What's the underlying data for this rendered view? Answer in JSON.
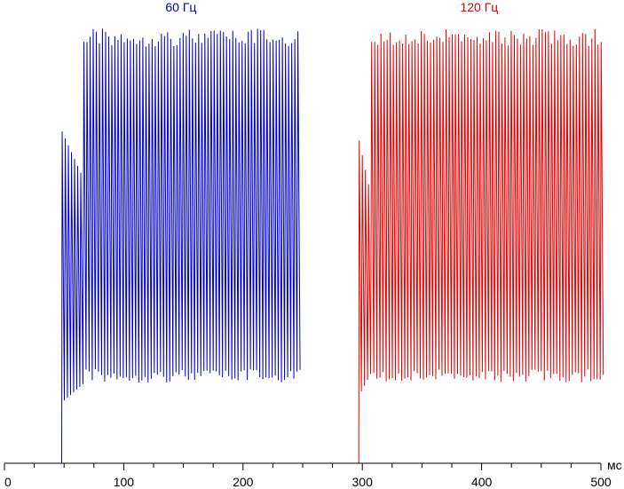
{
  "chart_data": {
    "type": "line",
    "title": "",
    "xlabel": "",
    "ylabel": "",
    "x_unit": "мс",
    "xlim": [
      0,
      500
    ],
    "ylim": [
      0,
      100
    ],
    "xticks": [
      0,
      100,
      200,
      300,
      400,
      500
    ],
    "xtick_labels": [
      "0",
      "100",
      "200",
      "300",
      "400",
      "500"
    ],
    "grid": false,
    "legend": "none",
    "series": [
      {
        "name": "60 Гц",
        "color": "#0000cc",
        "x_start": 0,
        "x_end": 250,
        "baseline": 0,
        "rise_x": 48,
        "step1_x_end": 65,
        "step1_peak": 74,
        "step1_trough": 14,
        "step2_x_start": 65,
        "step2_peak": 97,
        "step2_trough": 21,
        "end_x": 248,
        "oscillation_period": 2.6
      },
      {
        "name": "120 Гц",
        "color": "#e60000",
        "x_start": 250,
        "x_end": 500,
        "baseline": 0,
        "rise_x": 297,
        "step1_x_end": 305,
        "step1_peak": 72,
        "step1_trough": 16,
        "step2_x_start": 305,
        "step2_peak": 97,
        "step2_trough": 21,
        "end_x": 500,
        "oscillation_period": 2.6
      }
    ],
    "annotations": [
      {
        "text": "60 Гц",
        "color": "#0000cc",
        "x": 148
      },
      {
        "text": "120 Гц",
        "color": "#e60000",
        "x": 398
      }
    ]
  }
}
